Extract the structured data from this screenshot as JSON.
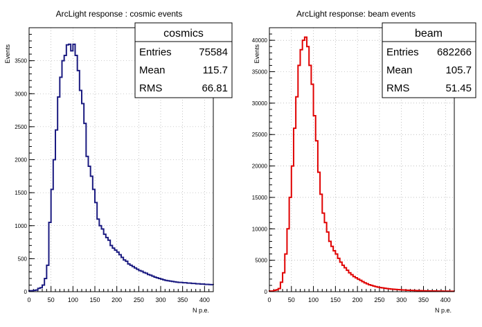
{
  "page": {
    "background": "#ffffff"
  },
  "chart_data": [
    {
      "type": "histogram",
      "title": "ArcLight response : cosmic events",
      "xlabel": "N p.e.",
      "ylabel": "Events",
      "xlim": [
        0,
        420
      ],
      "ylim": [
        0,
        4000
      ],
      "xticks": [
        0,
        50,
        100,
        150,
        200,
        250,
        300,
        350,
        400
      ],
      "yticks": [
        0,
        500,
        1000,
        1500,
        2000,
        2500,
        3000,
        3500
      ],
      "grid": true,
      "bin_width": 5,
      "line_color": "#1a1a80",
      "stats": {
        "name": "cosmics",
        "rows": [
          {
            "label": "Entries",
            "value": "75584"
          },
          {
            "label": "Mean",
            "value": "115.7"
          },
          {
            "label": "RMS",
            "value": "66.81"
          }
        ]
      },
      "series": [
        {
          "values": [
            15,
            15,
            20,
            25,
            50,
            60,
            100,
            200,
            400,
            1050,
            1550,
            2000,
            2450,
            2950,
            3250,
            3500,
            3580,
            3740,
            3750,
            3650,
            3750,
            3580,
            3350,
            3050,
            2850,
            2550,
            2050,
            1900,
            1750,
            1550,
            1350,
            1100,
            1000,
            950,
            870,
            820,
            780,
            700,
            660,
            630,
            600,
            560,
            520,
            480,
            460,
            420,
            400,
            380,
            360,
            340,
            320,
            310,
            290,
            280,
            260,
            250,
            235,
            220,
            210,
            200,
            190,
            180,
            170,
            165,
            160,
            155,
            150,
            145,
            140,
            140,
            135,
            135,
            130,
            130,
            125,
            125,
            120,
            120,
            115,
            115,
            110,
            110,
            108,
            106,
            105
          ]
        }
      ]
    },
    {
      "type": "histogram",
      "title": "ArcLight response: beam events",
      "xlabel": "N p.e.",
      "ylabel": "Events",
      "xlim": [
        0,
        420
      ],
      "ylim": [
        0,
        42000
      ],
      "xticks": [
        0,
        50,
        100,
        150,
        200,
        250,
        300,
        350,
        400
      ],
      "yticks": [
        0,
        5000,
        10000,
        15000,
        20000,
        25000,
        30000,
        35000,
        40000
      ],
      "grid": true,
      "bin_width": 5,
      "line_color": "#e00000",
      "stats": {
        "name": "beam",
        "rows": [
          {
            "label": "Entries",
            "value": "682266"
          },
          {
            "label": "Mean",
            "value": "105.7"
          },
          {
            "label": "RMS",
            "value": "51.45"
          }
        ]
      },
      "series": [
        {
          "values": [
            100,
            100,
            200,
            300,
            500,
            1500,
            3000,
            6000,
            10000,
            15000,
            20000,
            26000,
            31000,
            36000,
            38500,
            40000,
            40500,
            39000,
            36000,
            33000,
            28000,
            24000,
            19000,
            15500,
            12500,
            11000,
            9500,
            8000,
            7200,
            6500,
            6000,
            5300,
            4700,
            4200,
            3800,
            3400,
            3000,
            2700,
            2400,
            2200,
            2000,
            1800,
            1600,
            1400,
            1250,
            1100,
            1000,
            900,
            800,
            720,
            650,
            600,
            550,
            500,
            460,
            420,
            390,
            360,
            330,
            300,
            280,
            260,
            240,
            220,
            200,
            190,
            180,
            170,
            160,
            150,
            140,
            130,
            120,
            115,
            110,
            105,
            100,
            95,
            90,
            85,
            80,
            78,
            75,
            72,
            70
          ]
        }
      ]
    }
  ]
}
